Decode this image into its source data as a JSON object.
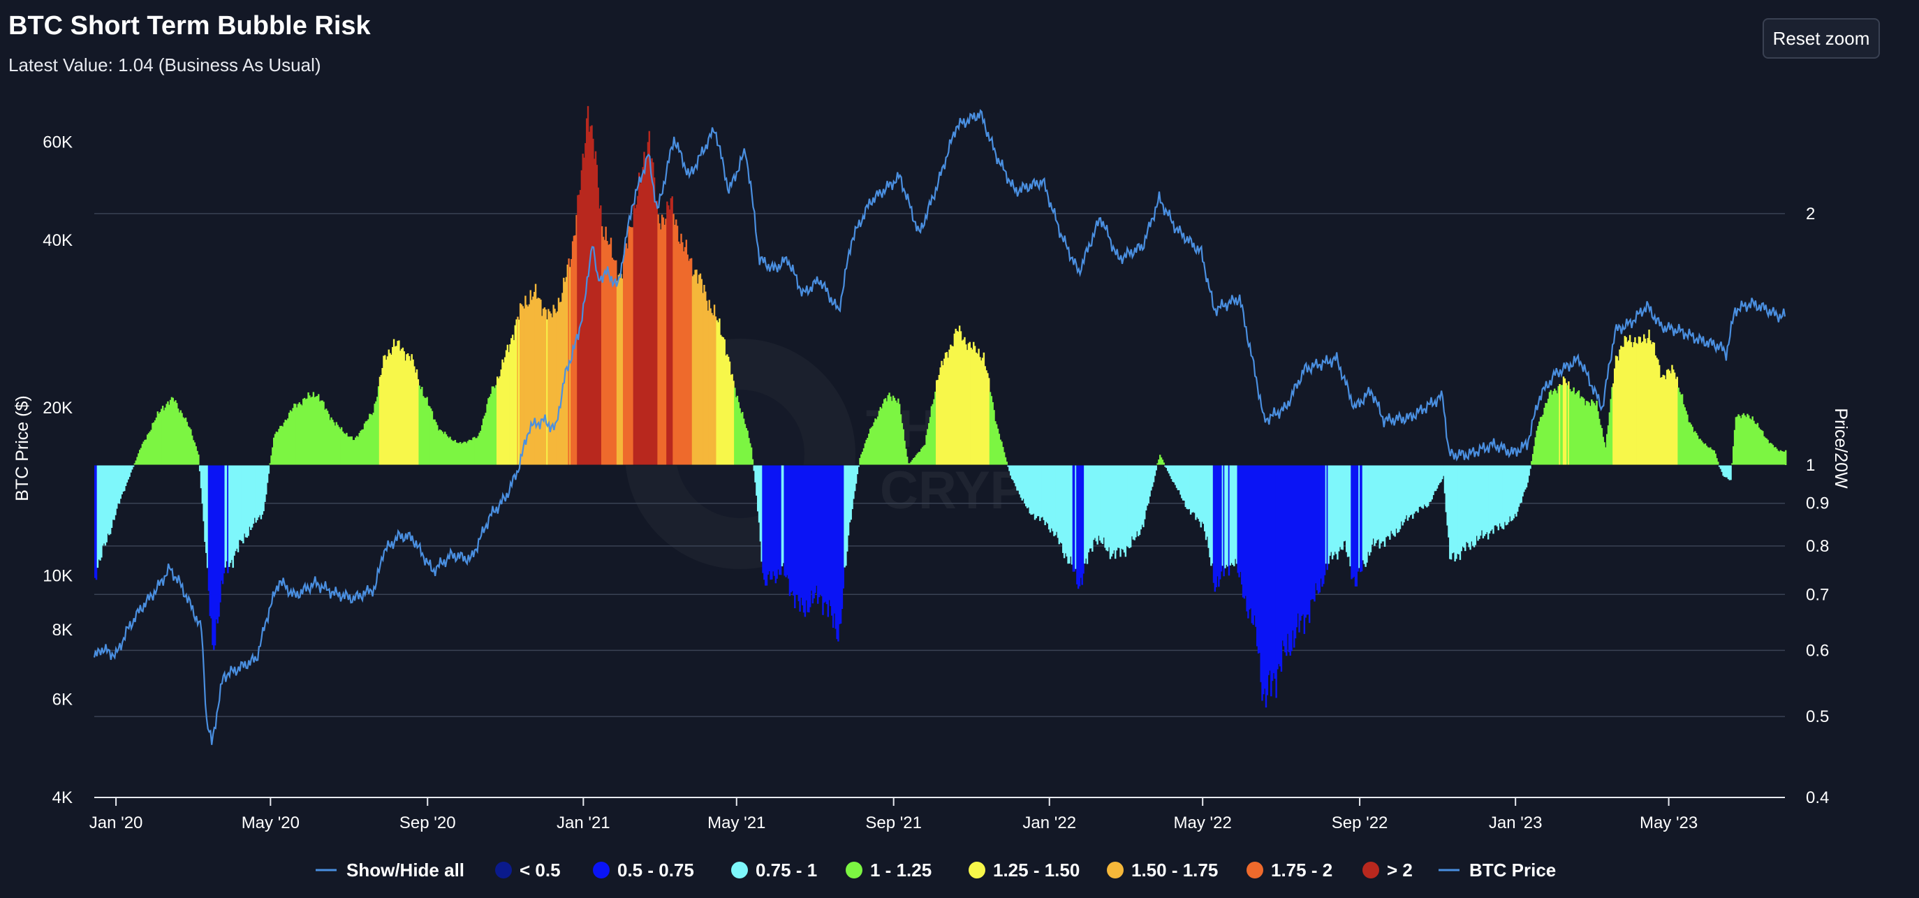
{
  "title": "BTC Short Term Bubble Risk",
  "subtitle": "Latest Value: 1.04 (Business As Usual)",
  "reset_zoom_label": "Reset zoom",
  "watermark": [
    "THE",
    "CRYPTO"
  ],
  "colors": {
    "background": "#131826",
    "gridline": "#3a4254",
    "axis": "#e8eaf0",
    "price_line": "#4a8fe0"
  },
  "chart_data": {
    "type": "bar",
    "title": "BTC Short Term Bubble Risk",
    "left_axis": {
      "title": "BTC Price ($)",
      "scale": "log",
      "ticks": [
        4000,
        6000,
        8000,
        10000,
        20000,
        40000,
        60000
      ],
      "tick_labels": [
        "4K",
        "6K",
        "8K",
        "10K",
        "20K",
        "40K",
        "60K"
      ],
      "range": [
        4000,
        70000
      ]
    },
    "right_axis": {
      "title": "Price/20W",
      "scale": "log",
      "ticks": [
        0.4,
        0.5,
        0.6,
        0.7,
        0.8,
        0.9,
        1,
        2
      ],
      "tick_labels": [
        "0.4",
        "0.5",
        "0.6",
        "0.7",
        "0.8",
        "0.9",
        "1",
        "2"
      ],
      "range": [
        0.4,
        2.7
      ],
      "baseline": 1
    },
    "x_axis": {
      "range": [
        "2019-12-15",
        "2023-07-31"
      ],
      "ticks": [
        "2020-01-01",
        "2020-05-01",
        "2020-09-01",
        "2021-01-01",
        "2021-05-01",
        "2021-09-01",
        "2022-01-01",
        "2022-05-01",
        "2022-09-01",
        "2023-01-01",
        "2023-05-01"
      ],
      "tick_labels": [
        "Jan '20",
        "May '20",
        "Sep '20",
        "Jan '21",
        "May '21",
        "Sep '21",
        "Jan '22",
        "May '22",
        "Sep '22",
        "Jan '23",
        "May '23"
      ]
    },
    "bands": [
      {
        "name": "< 0.5",
        "min": 0,
        "max": 0.5,
        "color": "#0a1a8c"
      },
      {
        "name": "0.5 - 0.75",
        "min": 0.5,
        "max": 0.75,
        "color": "#0a14f5"
      },
      {
        "name": "0.75 - 1",
        "min": 0.75,
        "max": 1,
        "color": "#7ef7fb"
      },
      {
        "name": "1 - 1.25",
        "min": 1,
        "max": 1.25,
        "color": "#7cf542"
      },
      {
        "name": "1.25 - 1.50",
        "min": 1.25,
        "max": 1.5,
        "color": "#f7f74a"
      },
      {
        "name": "1.50 - 1.75",
        "min": 1.5,
        "max": 1.75,
        "color": "#f5b73a"
      },
      {
        "name": "1.75 - 2",
        "min": 1.75,
        "max": 2,
        "color": "#ee6a2c"
      },
      {
        "name": "> 2",
        "min": 2,
        "max": 99,
        "color": "#b8281e"
      }
    ],
    "ratio_series": {
      "name": "Price/20W",
      "points": [
        [
          "2019-12-15",
          0.74
        ],
        [
          "2019-12-25",
          0.82
        ],
        [
          "2020-01-05",
          0.92
        ],
        [
          "2020-01-20",
          1.05
        ],
        [
          "2020-02-05",
          1.17
        ],
        [
          "2020-02-15",
          1.2
        ],
        [
          "2020-02-28",
          1.1
        ],
        [
          "2020-03-05",
          1.03
        ],
        [
          "2020-03-10",
          0.82
        ],
        [
          "2020-03-16",
          0.6
        ],
        [
          "2020-03-25",
          0.74
        ],
        [
          "2020-04-10",
          0.82
        ],
        [
          "2020-04-25",
          0.88
        ],
        [
          "2020-05-03",
          1.08
        ],
        [
          "2020-05-20",
          1.18
        ],
        [
          "2020-06-05",
          1.22
        ],
        [
          "2020-06-20",
          1.12
        ],
        [
          "2020-07-05",
          1.07
        ],
        [
          "2020-07-20",
          1.16
        ],
        [
          "2020-07-28",
          1.33
        ],
        [
          "2020-08-05",
          1.4
        ],
        [
          "2020-08-18",
          1.35
        ],
        [
          "2020-08-28",
          1.22
        ],
        [
          "2020-09-10",
          1.1
        ],
        [
          "2020-09-25",
          1.06
        ],
        [
          "2020-10-10",
          1.08
        ],
        [
          "2020-10-20",
          1.22
        ],
        [
          "2020-10-28",
          1.3
        ],
        [
          "2020-11-05",
          1.42
        ],
        [
          "2020-11-15",
          1.57
        ],
        [
          "2020-11-25",
          1.6
        ],
        [
          "2020-12-05",
          1.5
        ],
        [
          "2020-12-15",
          1.6
        ],
        [
          "2020-12-22",
          1.8
        ],
        [
          "2020-12-30",
          2.2
        ],
        [
          "2021-01-04",
          2.7
        ],
        [
          "2021-01-10",
          2.3
        ],
        [
          "2021-01-15",
          1.95
        ],
        [
          "2021-01-22",
          1.8
        ],
        [
          "2021-01-30",
          1.68
        ],
        [
          "2021-02-08",
          2.0
        ],
        [
          "2021-02-15",
          2.2
        ],
        [
          "2021-02-21",
          2.5
        ],
        [
          "2021-02-28",
          1.95
        ],
        [
          "2021-03-10",
          2.05
        ],
        [
          "2021-03-20",
          1.82
        ],
        [
          "2021-03-30",
          1.7
        ],
        [
          "2021-04-10",
          1.55
        ],
        [
          "2021-04-20",
          1.43
        ],
        [
          "2021-04-28",
          1.25
        ],
        [
          "2021-05-05",
          1.15
        ],
        [
          "2021-05-12",
          1.05
        ],
        [
          "2021-05-16",
          0.92
        ],
        [
          "2021-05-22",
          0.72
        ],
        [
          "2021-06-05",
          0.75
        ],
        [
          "2021-06-20",
          0.67
        ],
        [
          "2021-07-05",
          0.7
        ],
        [
          "2021-07-20",
          0.63
        ],
        [
          "2021-07-28",
          0.85
        ],
        [
          "2021-08-05",
          1.02
        ],
        [
          "2021-08-15",
          1.12
        ],
        [
          "2021-08-28",
          1.22
        ],
        [
          "2021-09-05",
          1.18
        ],
        [
          "2021-09-12",
          1.0
        ],
        [
          "2021-09-25",
          1.06
        ],
        [
          "2021-10-05",
          1.28
        ],
        [
          "2021-10-20",
          1.45
        ],
        [
          "2021-11-01",
          1.38
        ],
        [
          "2021-11-10",
          1.35
        ],
        [
          "2021-11-20",
          1.12
        ],
        [
          "2021-12-01",
          0.97
        ],
        [
          "2021-12-15",
          0.88
        ],
        [
          "2021-12-30",
          0.85
        ],
        [
          "2022-01-10",
          0.8
        ],
        [
          "2022-01-24",
          0.72
        ],
        [
          "2022-02-05",
          0.82
        ],
        [
          "2022-02-20",
          0.78
        ],
        [
          "2022-03-05",
          0.8
        ],
        [
          "2022-03-15",
          0.85
        ],
        [
          "2022-03-28",
          1.03
        ],
        [
          "2022-04-05",
          0.97
        ],
        [
          "2022-04-20",
          0.88
        ],
        [
          "2022-05-01",
          0.85
        ],
        [
          "2022-05-10",
          0.72
        ],
        [
          "2022-05-25",
          0.77
        ],
        [
          "2022-06-12",
          0.62
        ],
        [
          "2022-06-18",
          0.52
        ],
        [
          "2022-06-28",
          0.57
        ],
        [
          "2022-07-10",
          0.62
        ],
        [
          "2022-07-25",
          0.68
        ],
        [
          "2022-08-10",
          0.78
        ],
        [
          "2022-08-20",
          0.8
        ],
        [
          "2022-08-28",
          0.72
        ],
        [
          "2022-09-10",
          0.8
        ],
        [
          "2022-09-25",
          0.82
        ],
        [
          "2022-10-10",
          0.87
        ],
        [
          "2022-10-25",
          0.9
        ],
        [
          "2022-11-05",
          0.97
        ],
        [
          "2022-11-10",
          0.77
        ],
        [
          "2022-11-25",
          0.8
        ],
        [
          "2022-12-10",
          0.83
        ],
        [
          "2022-12-30",
          0.86
        ],
        [
          "2023-01-10",
          0.95
        ],
        [
          "2023-01-18",
          1.12
        ],
        [
          "2023-01-28",
          1.22
        ],
        [
          "2023-02-08",
          1.26
        ],
        [
          "2023-02-22",
          1.2
        ],
        [
          "2023-03-05",
          1.18
        ],
        [
          "2023-03-12",
          1.05
        ],
        [
          "2023-03-20",
          1.35
        ],
        [
          "2023-03-30",
          1.42
        ],
        [
          "2023-04-08",
          1.4
        ],
        [
          "2023-04-15",
          1.44
        ],
        [
          "2023-04-25",
          1.28
        ],
        [
          "2023-05-05",
          1.3
        ],
        [
          "2023-05-15",
          1.14
        ],
        [
          "2023-05-25",
          1.07
        ],
        [
          "2023-06-05",
          1.04
        ],
        [
          "2023-06-12",
          0.97
        ],
        [
          "2023-06-18",
          0.96
        ],
        [
          "2023-06-22",
          1.15
        ],
        [
          "2023-07-05",
          1.14
        ],
        [
          "2023-07-15",
          1.08
        ],
        [
          "2023-07-25",
          1.04
        ]
      ]
    },
    "price_series": {
      "name": "BTC Price",
      "points": [
        [
          "2019-12-15",
          7100
        ],
        [
          "2019-12-20",
          7400
        ],
        [
          "2020-01-01",
          7200
        ],
        [
          "2020-01-10",
          8000
        ],
        [
          "2020-01-20",
          8700
        ],
        [
          "2020-02-01",
          9400
        ],
        [
          "2020-02-12",
          10300
        ],
        [
          "2020-02-20",
          9700
        ],
        [
          "2020-03-01",
          8700
        ],
        [
          "2020-03-08",
          8000
        ],
        [
          "2020-03-12",
          5500
        ],
        [
          "2020-03-16",
          5000
        ],
        [
          "2020-03-25",
          6600
        ],
        [
          "2020-04-05",
          6800
        ],
        [
          "2020-04-20",
          7100
        ],
        [
          "2020-04-30",
          8700
        ],
        [
          "2020-05-08",
          9800
        ],
        [
          "2020-05-20",
          9200
        ],
        [
          "2020-06-05",
          9700
        ],
        [
          "2020-06-20",
          9300
        ],
        [
          "2020-07-05",
          9100
        ],
        [
          "2020-07-22",
          9500
        ],
        [
          "2020-07-28",
          11000
        ],
        [
          "2020-08-10",
          11800
        ],
        [
          "2020-08-20",
          11700
        ],
        [
          "2020-09-05",
          10200
        ],
        [
          "2020-09-20",
          10900
        ],
        [
          "2020-10-05",
          10700
        ],
        [
          "2020-10-20",
          12800
        ],
        [
          "2020-11-01",
          13800
        ],
        [
          "2020-11-10",
          15300
        ],
        [
          "2020-11-20",
          18500
        ],
        [
          "2020-12-01",
          19000
        ],
        [
          "2020-12-10",
          18300
        ],
        [
          "2020-12-18",
          23000
        ],
        [
          "2020-12-28",
          27000
        ],
        [
          "2021-01-03",
          32000
        ],
        [
          "2021-01-08",
          40000
        ],
        [
          "2021-01-12",
          34000
        ],
        [
          "2021-01-20",
          35000
        ],
        [
          "2021-01-28",
          33000
        ],
        [
          "2021-02-08",
          46000
        ],
        [
          "2021-02-21",
          57000
        ],
        [
          "2021-02-28",
          45000
        ],
        [
          "2021-03-13",
          61000
        ],
        [
          "2021-03-25",
          52000
        ],
        [
          "2021-04-05",
          58000
        ],
        [
          "2021-04-14",
          63500
        ],
        [
          "2021-04-25",
          49000
        ],
        [
          "2021-05-08",
          58000
        ],
        [
          "2021-05-12",
          50000
        ],
        [
          "2021-05-19",
          37000
        ],
        [
          "2021-05-30",
          35500
        ],
        [
          "2021-06-10",
          37000
        ],
        [
          "2021-06-22",
          32000
        ],
        [
          "2021-07-05",
          34000
        ],
        [
          "2021-07-20",
          29800
        ],
        [
          "2021-07-30",
          40000
        ],
        [
          "2021-08-14",
          47000
        ],
        [
          "2021-09-06",
          52000
        ],
        [
          "2021-09-21",
          41000
        ],
        [
          "2021-10-05",
          50000
        ],
        [
          "2021-10-20",
          64000
        ],
        [
          "2021-11-08",
          67500
        ],
        [
          "2021-11-20",
          57000
        ],
        [
          "2021-12-05",
          49000
        ],
        [
          "2021-12-27",
          51000
        ],
        [
          "2022-01-10",
          41000
        ],
        [
          "2022-01-24",
          35000
        ],
        [
          "2022-02-10",
          44000
        ],
        [
          "2022-02-24",
          37000
        ],
        [
          "2022-03-15",
          39000
        ],
        [
          "2022-03-28",
          47500
        ],
        [
          "2022-04-10",
          42000
        ],
        [
          "2022-04-30",
          38000
        ],
        [
          "2022-05-10",
          30000
        ],
        [
          "2022-05-30",
          31500
        ],
        [
          "2022-06-13",
          22000
        ],
        [
          "2022-06-18",
          19000
        ],
        [
          "2022-07-05",
          20000
        ],
        [
          "2022-07-20",
          23500
        ],
        [
          "2022-08-14",
          24500
        ],
        [
          "2022-08-28",
          20000
        ],
        [
          "2022-09-10",
          21500
        ],
        [
          "2022-09-20",
          19000
        ],
        [
          "2022-10-10",
          19200
        ],
        [
          "2022-11-05",
          21000
        ],
        [
          "2022-11-10",
          16500
        ],
        [
          "2022-11-25",
          16500
        ],
        [
          "2022-12-15",
          17200
        ],
        [
          "2022-12-30",
          16600
        ],
        [
          "2023-01-10",
          17200
        ],
        [
          "2023-01-20",
          21000
        ],
        [
          "2023-02-01",
          23000
        ],
        [
          "2023-02-20",
          24500
        ],
        [
          "2023-03-10",
          20000
        ],
        [
          "2023-03-20",
          27500
        ],
        [
          "2023-04-01",
          28400
        ],
        [
          "2023-04-14",
          30500
        ],
        [
          "2023-04-25",
          28000
        ],
        [
          "2023-05-10",
          27500
        ],
        [
          "2023-05-25",
          26500
        ],
        [
          "2023-06-10",
          25800
        ],
        [
          "2023-06-15",
          25000
        ],
        [
          "2023-06-22",
          30000
        ],
        [
          "2023-07-05",
          30800
        ],
        [
          "2023-07-15",
          30200
        ],
        [
          "2023-07-25",
          29300
        ]
      ]
    },
    "legend": {
      "placement": "bottom",
      "items": [
        {
          "label": "Show/Hide all",
          "marker": "line",
          "color": "#4a8fe0"
        },
        {
          "label": "< 0.5",
          "marker": "dot",
          "color": "#0a1a8c"
        },
        {
          "label": "0.5 - 0.75",
          "marker": "dot",
          "color": "#0a14f5"
        },
        {
          "label": "0.75 - 1",
          "marker": "dot",
          "color": "#7ef7fb"
        },
        {
          "label": "1 - 1.25",
          "marker": "dot",
          "color": "#7cf542"
        },
        {
          "label": "1.25 - 1.50",
          "marker": "dot",
          "color": "#f7f74a"
        },
        {
          "label": "1.50 - 1.75",
          "marker": "dot",
          "color": "#f5b73a"
        },
        {
          "label": "1.75 - 2",
          "marker": "dot",
          "color": "#ee6a2c"
        },
        {
          "label": "> 2",
          "marker": "dot",
          "color": "#b8281e"
        },
        {
          "label": "BTC Price",
          "marker": "line",
          "color": "#4a8fe0"
        }
      ]
    }
  }
}
